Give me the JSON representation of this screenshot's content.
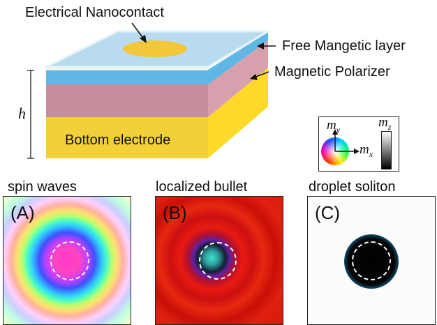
{
  "labels": {
    "nanocontact": "Electrical Nanocontact",
    "free_layer": "Free Mangetic layer",
    "polarizer": "Magnetic Polarizer",
    "bottom_electrode": "Bottom electrode",
    "height": "h"
  },
  "legend": {
    "my": "m",
    "my_sub": "y",
    "mx": "m",
    "mx_sub": "x",
    "mz": "m",
    "mz_sub": "z"
  },
  "panels": [
    {
      "title": "spin waves",
      "tag": "(A)"
    },
    {
      "title": "localized bullet",
      "tag": "(B)"
    },
    {
      "title": "droplet soliton",
      "tag": "(C)"
    }
  ],
  "colors": {
    "free_layer": "#b7d9ee",
    "free_layer_side": "#5fb7e6",
    "polarizer": "#d49aa8",
    "polarizer_top": "#c98f9d",
    "electrode": "#f3cf3a",
    "electrode_side": "#ffd92a",
    "nanocontact": "#f2c73a"
  }
}
